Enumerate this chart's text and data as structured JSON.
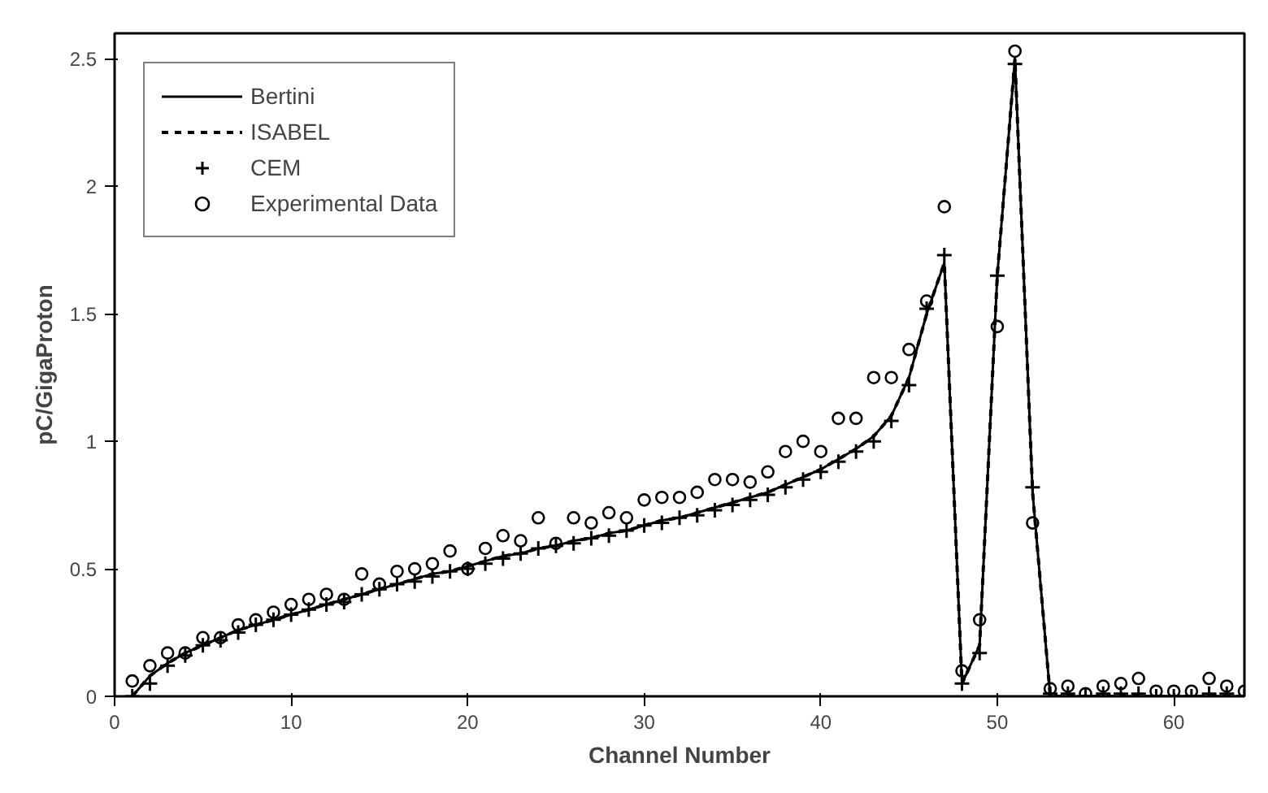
{
  "chart_data": {
    "type": "line",
    "xlabel": "Channel Number",
    "ylabel": "pC/GigaProton",
    "xlim": [
      0,
      64
    ],
    "ylim": [
      0,
      2.6
    ],
    "xticks": [
      0,
      10,
      20,
      30,
      40,
      50,
      60
    ],
    "yticks": [
      0,
      0.5,
      1,
      1.5,
      2,
      2.5
    ],
    "grid": false,
    "legend": "top left",
    "x": [
      1,
      2,
      3,
      4,
      5,
      6,
      7,
      8,
      9,
      10,
      11,
      12,
      13,
      14,
      15,
      16,
      17,
      18,
      19,
      20,
      21,
      22,
      23,
      24,
      25,
      26,
      27,
      28,
      29,
      30,
      31,
      32,
      33,
      34,
      35,
      36,
      37,
      38,
      39,
      40,
      41,
      42,
      43,
      44,
      45,
      46,
      47,
      48,
      49,
      50,
      51,
      52,
      53,
      54,
      55,
      56,
      57,
      58,
      59,
      60,
      61,
      62,
      63,
      64
    ],
    "series": [
      {
        "name": "Bertini",
        "color": "#000000",
        "line_style": "solid",
        "marker": "none",
        "values": [
          0.0,
          0.08,
          0.13,
          0.17,
          0.2,
          0.23,
          0.26,
          0.28,
          0.3,
          0.32,
          0.34,
          0.36,
          0.38,
          0.4,
          0.42,
          0.44,
          0.46,
          0.48,
          0.49,
          0.51,
          0.53,
          0.55,
          0.56,
          0.58,
          0.59,
          0.61,
          0.62,
          0.64,
          0.65,
          0.67,
          0.69,
          0.7,
          0.72,
          0.74,
          0.76,
          0.78,
          0.8,
          0.83,
          0.86,
          0.89,
          0.93,
          0.97,
          1.02,
          1.1,
          1.25,
          1.5,
          1.7,
          0.05,
          0.2,
          1.65,
          2.5,
          0.8,
          0.0,
          0.0,
          0.0,
          0.0,
          0.0,
          0.0,
          0.0,
          0.0,
          0.0,
          0.0,
          0.0,
          0.0
        ]
      },
      {
        "name": "ISABEL",
        "color": "#000000",
        "line_style": "dotted",
        "marker": "none",
        "values": [
          0.0,
          0.08,
          0.13,
          0.17,
          0.2,
          0.23,
          0.26,
          0.28,
          0.3,
          0.32,
          0.34,
          0.36,
          0.38,
          0.4,
          0.42,
          0.44,
          0.46,
          0.48,
          0.49,
          0.51,
          0.53,
          0.55,
          0.56,
          0.58,
          0.59,
          0.61,
          0.62,
          0.64,
          0.65,
          0.67,
          0.69,
          0.7,
          0.72,
          0.74,
          0.76,
          0.78,
          0.8,
          0.83,
          0.86,
          0.89,
          0.93,
          0.97,
          1.02,
          1.1,
          1.25,
          1.5,
          1.7,
          0.05,
          0.2,
          1.65,
          2.5,
          0.8,
          0.0,
          0.0,
          0.0,
          0.0,
          0.0,
          0.0,
          0.0,
          0.0,
          0.0,
          0.0,
          0.0,
          0.0
        ]
      },
      {
        "name": "CEM",
        "type": "scatter",
        "color": "#000000",
        "marker": "cross",
        "values": [
          0.0,
          0.05,
          0.12,
          0.16,
          0.2,
          0.22,
          0.25,
          0.28,
          0.3,
          0.32,
          0.34,
          0.36,
          0.37,
          0.4,
          0.42,
          0.44,
          0.45,
          0.47,
          0.49,
          0.5,
          0.52,
          0.54,
          0.56,
          0.58,
          0.59,
          0.6,
          0.62,
          0.63,
          0.65,
          0.67,
          0.68,
          0.7,
          0.71,
          0.73,
          0.75,
          0.77,
          0.79,
          0.82,
          0.85,
          0.88,
          0.92,
          0.96,
          1.0,
          1.08,
          1.22,
          1.52,
          1.73,
          0.05,
          0.17,
          1.65,
          2.48,
          0.82,
          0.01,
          0.01,
          0.0,
          0.01,
          0.01,
          0.01,
          0.0,
          0.0,
          0.0,
          0.01,
          0.01,
          0.0
        ]
      },
      {
        "name": "Experimental Data",
        "type": "scatter",
        "color": "#000000",
        "marker": "circle",
        "values": [
          0.06,
          0.12,
          0.17,
          0.17,
          0.23,
          0.23,
          0.28,
          0.3,
          0.33,
          0.36,
          0.38,
          0.4,
          0.38,
          0.48,
          0.44,
          0.49,
          0.5,
          0.52,
          0.57,
          0.5,
          0.58,
          0.63,
          0.61,
          0.7,
          0.6,
          0.7,
          0.68,
          0.72,
          0.7,
          0.77,
          0.78,
          0.78,
          0.8,
          0.85,
          0.85,
          0.84,
          0.88,
          0.96,
          1.0,
          0.96,
          1.09,
          1.09,
          1.25,
          1.25,
          1.36,
          1.55,
          1.92,
          0.1,
          0.3,
          1.45,
          2.53,
          0.68,
          0.03,
          0.04,
          0.01,
          0.04,
          0.05,
          0.07,
          0.02,
          0.02,
          0.02,
          0.07,
          0.04,
          0.02
        ]
      }
    ]
  }
}
